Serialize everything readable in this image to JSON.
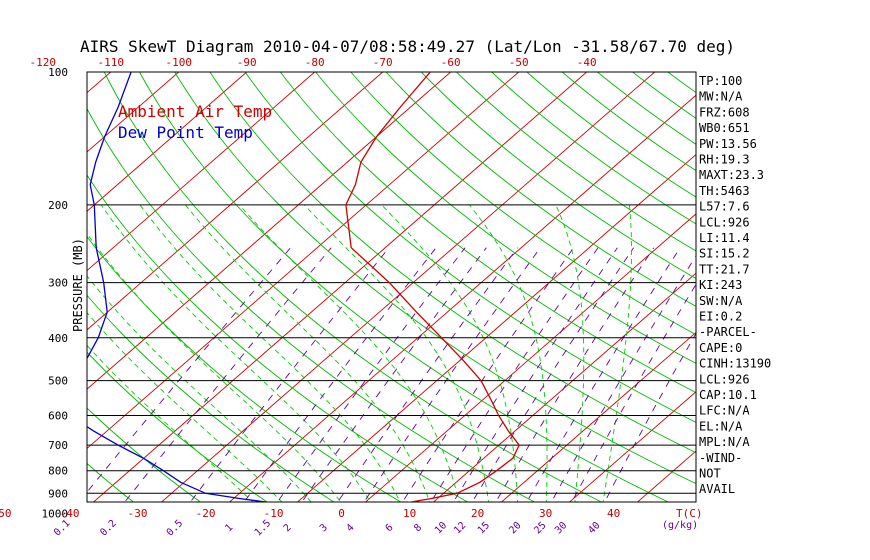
{
  "colors": {
    "temp": "#cc0000",
    "dewpoint": "#0000cc",
    "isotherm": "#cc0000",
    "dry_adiabat": "#00bb00",
    "moist_adiabat": "#00cc00",
    "mixing_ratio": "#660099",
    "isobar": "#000000"
  },
  "chart_data": {
    "type": "line",
    "title": "AIRS SkewT Diagram 2010-04-07/08:58:49.27 (Lat/Lon -31.58/67.70 deg)",
    "ylabel": "PRESSURE (MB)",
    "xlabel": "T(C)",
    "mixing_ratio_label": "(g/kg)",
    "pressure_ticks": [
      100,
      200,
      300,
      400,
      500,
      600,
      700,
      800,
      900,
      1000
    ],
    "temp_ticks_top": [
      -120,
      -110,
      -100,
      -90,
      -80,
      -70,
      -60,
      -50,
      -40
    ],
    "temp_ticks_bottom": [
      -50,
      -40,
      -30,
      -20,
      -10,
      0,
      10,
      20,
      30,
      40
    ],
    "mixing_ratio_ticks": [
      "0.1",
      "0.2",
      "0.5",
      "1",
      "1.5",
      "2",
      "3",
      "4",
      "6",
      "8",
      "10",
      "12",
      "15",
      "20",
      "25",
      "30",
      "40"
    ],
    "ylim": [
      100,
      1050
    ],
    "scale": "log-pressure",
    "grid": "on",
    "legend_placement": "top-left",
    "series": [
      {
        "name": "Ambient Air Temp",
        "pressure": [
          1000,
          975,
          950,
          925,
          900,
          850,
          800,
          750,
          700,
          650,
          600,
          550,
          500,
          450,
          400,
          350,
          300,
          250,
          200,
          180,
          160,
          140,
          120,
          100
        ],
        "temperature": [
          10.0,
          6.0,
          5.5,
          9.0,
          12.0,
          13.5,
          14.0,
          14.3,
          13.0,
          9.0,
          5.0,
          1.0,
          -3.5,
          -9.5,
          -16.5,
          -24.5,
          -33.5,
          -45.0,
          -53.0,
          -55.0,
          -58.0,
          -60.0,
          -61.5,
          -63.0
        ]
      },
      {
        "name": "Dew Point Temp",
        "pressure": [
          1000,
          975,
          950,
          925,
          900,
          850,
          800,
          750,
          700,
          650,
          600,
          550,
          500,
          450,
          400,
          350,
          300,
          250,
          200,
          180,
          160,
          140,
          120,
          100
        ],
        "temperature": [
          -6.0,
          -8.0,
          -12.5,
          -19.0,
          -25.0,
          -30.5,
          -35.0,
          -40.0,
          -46.0,
          -52.0,
          -58.0,
          -59.0,
          -62.0,
          -65.0,
          -67.0,
          -70.0,
          -75.5,
          -82.5,
          -90.0,
          -94.0,
          -97.0,
          -100.0,
          -103.0,
          -107.0
        ]
      }
    ]
  },
  "parameters": [
    "TP:100",
    "MW:N/A",
    "FRZ:608",
    "WB0:651",
    "PW:13.56",
    "RH:19.3",
    "MAXT:23.3",
    "TH:5463",
    "L57:7.6",
    "LCL:926",
    "LI:11.4",
    "SI:15.2",
    "TT:21.7",
    "KI:243",
    "SW:N/A",
    "EI:0.2",
    "-PARCEL-",
    "CAPE:0",
    "CINH:13190",
    "LCL:926",
    "CAP:10.1",
    "LFC:N/A",
    "EL:N/A",
    "MPL:N/A",
    "-WIND-",
    "NOT",
    "AVAIL"
  ]
}
